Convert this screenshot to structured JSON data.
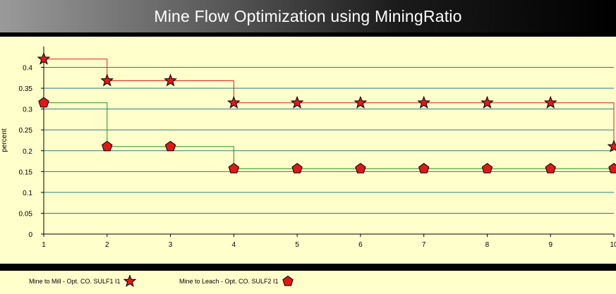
{
  "title": "Mine Flow Optimization using MiningRatio",
  "colors": {
    "plot_background": "#ffffcc",
    "gridline": "#2e7d7d",
    "series_mill_line": "#e02020",
    "series_leach_line": "#209020",
    "marker_fill": "#e01818"
  },
  "chart_data": {
    "type": "line",
    "step": true,
    "ylabel": "percent",
    "xlabel": "",
    "x": [
      1,
      2,
      3,
      4,
      5,
      6,
      7,
      8,
      9,
      10
    ],
    "xlim": [
      1,
      10
    ],
    "ylim": [
      0,
      0.45
    ],
    "yticks": [
      0,
      0.05,
      0.1,
      0.15,
      0.2,
      0.25,
      0.3,
      0.35,
      0.4
    ],
    "ytick_labels": [
      "0",
      "0.05",
      "0.1",
      "0.15",
      "0.2",
      "0.25",
      "0.3",
      "0.35",
      "0.4"
    ],
    "xtick_labels": [
      "1",
      "2",
      "3",
      "4",
      "5",
      "6",
      "7",
      "8",
      "9",
      "10"
    ],
    "grid": true,
    "legend_position": "bottom",
    "series": [
      {
        "name": "Mine to Mill  - Opt. CO. SULF1 I1",
        "marker": "star",
        "line_color": "#e02020",
        "values": [
          0.42,
          0.368,
          0.368,
          0.315,
          0.315,
          0.315,
          0.315,
          0.315,
          0.315,
          0.21
        ]
      },
      {
        "name": "Mine to Leach - Opt. CO. SULF2 I1",
        "marker": "pentagon",
        "line_color": "#209020",
        "values": [
          0.315,
          0.21,
          0.21,
          0.157,
          0.157,
          0.157,
          0.157,
          0.157,
          0.157,
          0.157
        ]
      }
    ]
  }
}
